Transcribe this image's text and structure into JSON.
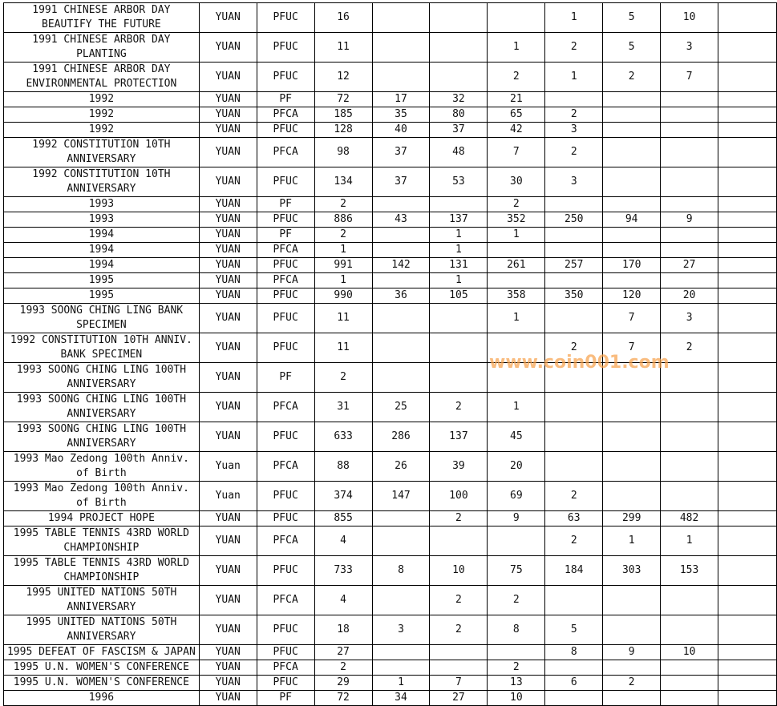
{
  "rows": [
    {
      "name": [
        "1991 CHINESE ARBOR DAY",
        "BEAUTIFY THE FUTURE"
      ],
      "unit": "YUAN",
      "type": "PFUC",
      "total": "16",
      "cols": [
        "",
        "",
        "",
        "1",
        "5",
        "10",
        ""
      ]
    },
    {
      "name": [
        "1991 CHINESE ARBOR DAY",
        "PLANTING"
      ],
      "unit": "YUAN",
      "type": "PFUC",
      "total": "11",
      "cols": [
        "",
        "",
        "1",
        "2",
        "5",
        "3",
        ""
      ]
    },
    {
      "name": [
        "1991 CHINESE ARBOR DAY",
        "ENVIRONMENTAL PROTECTION"
      ],
      "unit": "YUAN",
      "type": "PFUC",
      "total": "12",
      "cols": [
        "",
        "",
        "2",
        "1",
        "2",
        "7",
        ""
      ]
    },
    {
      "name": [
        "1992"
      ],
      "unit": "YUAN",
      "type": "PF",
      "total": "72",
      "cols": [
        "17",
        "32",
        "21",
        "",
        "",
        "",
        ""
      ]
    },
    {
      "name": [
        "1992"
      ],
      "unit": "YUAN",
      "type": "PFCA",
      "total": "185",
      "cols": [
        "35",
        "80",
        "65",
        "2",
        "",
        "",
        ""
      ]
    },
    {
      "name": [
        "1992"
      ],
      "unit": "YUAN",
      "type": "PFUC",
      "total": "128",
      "cols": [
        "40",
        "37",
        "42",
        "3",
        "",
        "",
        ""
      ]
    },
    {
      "name": [
        "1992 CONSTITUTION 10TH",
        "ANNIVERSARY"
      ],
      "unit": "YUAN",
      "type": "PFCA",
      "total": "98",
      "cols": [
        "37",
        "48",
        "7",
        "2",
        "",
        "",
        ""
      ]
    },
    {
      "name": [
        "1992 CONSTITUTION 10TH",
        "ANNIVERSARY"
      ],
      "unit": "YUAN",
      "type": "PFUC",
      "total": "134",
      "cols": [
        "37",
        "53",
        "30",
        "3",
        "",
        "",
        ""
      ]
    },
    {
      "name": [
        "1993"
      ],
      "unit": "YUAN",
      "type": "PF",
      "total": "2",
      "cols": [
        "",
        "",
        "2",
        "",
        "",
        "",
        ""
      ]
    },
    {
      "name": [
        "1993"
      ],
      "unit": "YUAN",
      "type": "PFUC",
      "total": "886",
      "cols": [
        "43",
        "137",
        "352",
        "250",
        "94",
        "9",
        ""
      ]
    },
    {
      "name": [
        "1994"
      ],
      "unit": "YUAN",
      "type": "PF",
      "total": "2",
      "cols": [
        "",
        "1",
        "1",
        "",
        "",
        "",
        ""
      ]
    },
    {
      "name": [
        "1994"
      ],
      "unit": "YUAN",
      "type": "PFCA",
      "total": "1",
      "cols": [
        "",
        "1",
        "",
        "",
        "",
        "",
        ""
      ]
    },
    {
      "name": [
        "1994"
      ],
      "unit": "YUAN",
      "type": "PFUC",
      "total": "991",
      "cols": [
        "142",
        "131",
        "261",
        "257",
        "170",
        "27",
        ""
      ]
    },
    {
      "name": [
        "1995"
      ],
      "unit": "YUAN",
      "type": "PFCA",
      "total": "1",
      "cols": [
        "",
        "1",
        "",
        "",
        "",
        "",
        ""
      ]
    },
    {
      "name": [
        "1995"
      ],
      "unit": "YUAN",
      "type": "PFUC",
      "total": "990",
      "cols": [
        "36",
        "105",
        "358",
        "350",
        "120",
        "20",
        ""
      ]
    },
    {
      "name": [
        "1993 SOONG CHING LING BANK",
        "SPECIMEN"
      ],
      "unit": "YUAN",
      "type": "PFUC",
      "total": "11",
      "cols": [
        "",
        "",
        "1",
        "",
        "7",
        "3",
        ""
      ]
    },
    {
      "name": [
        "1992 CONSTITUTION 10TH ANNIV.",
        "BANK SPECIMEN"
      ],
      "unit": "YUAN",
      "type": "PFUC",
      "total": "11",
      "cols": [
        "",
        "",
        "",
        "2",
        "7",
        "2",
        ""
      ]
    },
    {
      "name": [
        "1993 SOONG CHING LING 100TH",
        "ANNIVERSARY"
      ],
      "unit": "YUAN",
      "type": "PF",
      "total": "2",
      "cols": [
        "",
        "",
        "",
        "",
        "",
        "",
        ""
      ]
    },
    {
      "name": [
        "1993 SOONG CHING LING 100TH",
        "ANNIVERSARY"
      ],
      "unit": "YUAN",
      "type": "PFCA",
      "total": "31",
      "cols": [
        "25",
        "2",
        "1",
        "",
        "",
        "",
        ""
      ]
    },
    {
      "name": [
        "1993 SOONG CHING LING 100TH",
        "ANNIVERSARY"
      ],
      "unit": "YUAN",
      "type": "PFUC",
      "total": "633",
      "cols": [
        "286",
        "137",
        "45",
        "",
        "",
        "",
        ""
      ]
    },
    {
      "name": [
        "1993 Mao Zedong 100th Anniv.",
        "of Birth"
      ],
      "unit": "Yuan",
      "type": "PFCA",
      "total": "88",
      "cols": [
        "26",
        "39",
        "20",
        "",
        "",
        "",
        ""
      ]
    },
    {
      "name": [
        "1993 Mao Zedong 100th Anniv.",
        "of Birth"
      ],
      "unit": "Yuan",
      "type": "PFUC",
      "total": "374",
      "cols": [
        "147",
        "100",
        "69",
        "2",
        "",
        "",
        ""
      ]
    },
    {
      "name": [
        "1994 PROJECT HOPE"
      ],
      "unit": "YUAN",
      "type": "PFUC",
      "total": "855",
      "cols": [
        "",
        "2",
        "9",
        "63",
        "299",
        "482",
        ""
      ]
    },
    {
      "name": [
        "1995 TABLE TENNIS 43RD WORLD",
        "CHAMPIONSHIP"
      ],
      "unit": "YUAN",
      "type": "PFCA",
      "total": "4",
      "cols": [
        "",
        "",
        "",
        "2",
        "1",
        "1",
        ""
      ]
    },
    {
      "name": [
        "1995 TABLE TENNIS 43RD WORLD",
        "CHAMPIONSHIP"
      ],
      "unit": "YUAN",
      "type": "PFUC",
      "total": "733",
      "cols": [
        "8",
        "10",
        "75",
        "184",
        "303",
        "153",
        ""
      ]
    },
    {
      "name": [
        "1995 UNITED NATIONS 50TH",
        "ANNIVERSARY"
      ],
      "unit": "YUAN",
      "type": "PFCA",
      "total": "4",
      "cols": [
        "",
        "2",
        "2",
        "",
        "",
        "",
        ""
      ]
    },
    {
      "name": [
        "1995 UNITED NATIONS 50TH",
        "ANNIVERSARY"
      ],
      "unit": "YUAN",
      "type": "PFUC",
      "total": "18",
      "cols": [
        "3",
        "2",
        "8",
        "5",
        "",
        "",
        ""
      ]
    },
    {
      "name": [
        "1995 DEFEAT OF FASCISM & JAPAN"
      ],
      "unit": "YUAN",
      "type": "PFUC",
      "total": "27",
      "cols": [
        "",
        "",
        "",
        "8",
        "9",
        "10",
        ""
      ]
    },
    {
      "name": [
        "1995 U.N. WOMEN'S CONFERENCE"
      ],
      "unit": "YUAN",
      "type": "PFCA",
      "total": "2",
      "cols": [
        "",
        "",
        "2",
        "",
        "",
        "",
        ""
      ]
    },
    {
      "name": [
        "1995 U.N. WOMEN'S CONFERENCE"
      ],
      "unit": "YUAN",
      "type": "PFUC",
      "total": "29",
      "cols": [
        "1",
        "7",
        "13",
        "6",
        "2",
        "",
        ""
      ]
    },
    {
      "name": [
        "1996"
      ],
      "unit": "YUAN",
      "type": "PF",
      "total": "72",
      "cols": [
        "34",
        "27",
        "10",
        "",
        "",
        "",
        ""
      ]
    }
  ],
  "watermark": "www.coin001.com",
  "colors": {
    "watermark": "#f7a04a",
    "grid": "#000000"
  }
}
